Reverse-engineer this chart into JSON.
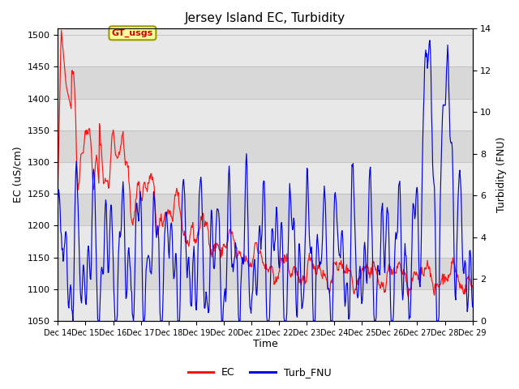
{
  "title": "Jersey Island EC, Turbidity",
  "xlabel": "Time",
  "ylabel_left": "EC (uS/cm)",
  "ylabel_right": "Turbidity (FNU)",
  "ylim_left": [
    1050,
    1510
  ],
  "ylim_right": [
    0,
    14
  ],
  "yticks_left": [
    1050,
    1100,
    1150,
    1200,
    1250,
    1300,
    1350,
    1400,
    1450,
    1500
  ],
  "yticks_right": [
    0,
    2,
    4,
    6,
    8,
    10,
    12,
    14
  ],
  "background_color": "#ffffff",
  "plot_bg_color": "#e8e8e8",
  "ec_color": "#ff1111",
  "turb_color": "#0000ee",
  "annotation_text": "GT_usgs",
  "annotation_bg": "#ffff99",
  "annotation_border": "#999900",
  "legend_ec": "EC",
  "legend_turb": "Turb_FNU",
  "x_tick_labels": [
    "Dec 14",
    "Dec 15",
    "Dec 16",
    "Dec 17",
    "Dec 18",
    "Dec 19",
    "Dec 20",
    "Dec 21",
    "Dec 22",
    "Dec 23",
    "Dec 24",
    "Dec 25",
    "Dec 26",
    "Dec 27",
    "Dec 28",
    "Dec 29"
  ],
  "n_days": 15,
  "pts_per_day": 48
}
